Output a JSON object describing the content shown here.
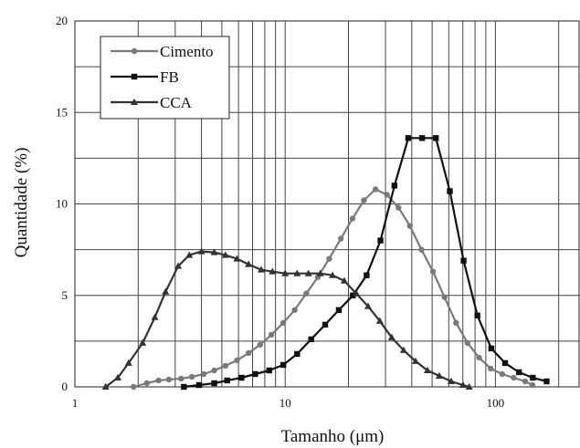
{
  "chart_data": {
    "type": "line",
    "xscale": "log",
    "xlim": [
      1,
      250
    ],
    "ylim": [
      0,
      20
    ],
    "xticks": [
      1,
      10,
      100
    ],
    "xtick_labels": [
      "1",
      "10",
      "100"
    ],
    "yticks": [
      0,
      5,
      10,
      15,
      20
    ],
    "ytick_labels": [
      "0",
      "5",
      "10",
      "15",
      "20"
    ],
    "xlabel": "Tamanho (μm)",
    "ylabel": "Quantidade (%)",
    "grid": true,
    "legend_position": "top-left",
    "series": [
      {
        "name": "Cimento",
        "marker": "circle",
        "color": "#7a7a7a",
        "x": [
          1.9,
          2.2,
          2.5,
          2.8,
          3.2,
          3.6,
          4.1,
          4.6,
          5.2,
          5.9,
          6.7,
          7.6,
          8.6,
          9.8,
          11.1,
          12.6,
          14.3,
          16.2,
          18.4,
          20.9,
          23.7,
          26.9,
          30.5,
          34.6,
          39.2,
          44.5,
          50.5,
          57.3,
          65.0,
          73.7,
          83.6,
          94.9,
          107.7,
          122.2,
          138.6,
          150.0
        ],
        "y": [
          0.0,
          0.2,
          0.35,
          0.4,
          0.45,
          0.55,
          0.7,
          0.9,
          1.15,
          1.45,
          1.85,
          2.3,
          2.85,
          3.5,
          4.2,
          5.1,
          6.0,
          7.0,
          8.1,
          9.2,
          10.2,
          10.8,
          10.5,
          9.8,
          8.8,
          7.5,
          6.3,
          4.9,
          3.5,
          2.4,
          1.6,
          1.0,
          0.7,
          0.5,
          0.3,
          0.1
        ]
      },
      {
        "name": "FB",
        "marker": "square",
        "color": "#111111",
        "x": [
          3.3,
          3.9,
          4.6,
          5.3,
          6.2,
          7.2,
          8.4,
          9.8,
          11.4,
          13.3,
          15.5,
          18.0,
          21.0,
          24.4,
          28.4,
          33.1,
          38.5,
          44.8,
          52.1,
          60.7,
          70.6,
          82.1,
          95.6,
          111.2,
          129.4,
          150.6,
          175.2
        ],
        "y": [
          0.0,
          0.1,
          0.2,
          0.35,
          0.5,
          0.7,
          0.9,
          1.2,
          1.8,
          2.6,
          3.4,
          4.2,
          5.0,
          6.1,
          8.0,
          11.0,
          13.6,
          13.6,
          13.6,
          10.7,
          6.9,
          3.9,
          2.1,
          1.3,
          0.8,
          0.5,
          0.3
        ]
      },
      {
        "name": "CCA",
        "marker": "triangle",
        "color": "#333333",
        "x": [
          1.4,
          1.6,
          1.8,
          2.1,
          2.4,
          2.7,
          3.1,
          3.5,
          4.0,
          4.6,
          5.2,
          5.9,
          6.7,
          7.7,
          8.7,
          10.0,
          11.4,
          12.9,
          14.7,
          16.8,
          19.1,
          21.8,
          24.8,
          28.2,
          32.1,
          36.6,
          41.7,
          47.5,
          54.1,
          61.6,
          70.1,
          75.0
        ],
        "y": [
          0.0,
          0.5,
          1.3,
          2.4,
          3.8,
          5.2,
          6.6,
          7.2,
          7.4,
          7.35,
          7.2,
          7.0,
          6.7,
          6.4,
          6.3,
          6.2,
          6.2,
          6.2,
          6.2,
          6.1,
          5.8,
          5.1,
          4.4,
          3.6,
          2.7,
          2.0,
          1.4,
          0.9,
          0.6,
          0.3,
          0.1,
          0.0
        ]
      }
    ]
  }
}
